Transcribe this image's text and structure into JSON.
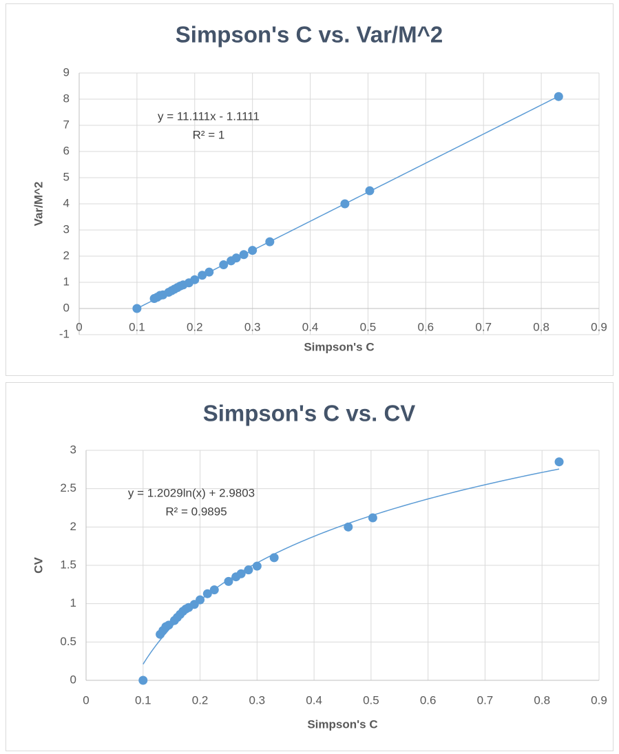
{
  "chart_data": [
    {
      "type": "scatter",
      "title": "Simpson's C vs. Var/M^2",
      "x_label": "Simpson's C",
      "y_label": "Var/M^2",
      "x": [
        0.1,
        0.13,
        0.135,
        0.14,
        0.145,
        0.155,
        0.16,
        0.165,
        0.17,
        0.175,
        0.18,
        0.19,
        0.2,
        0.213,
        0.225,
        0.25,
        0.263,
        0.272,
        0.285,
        0.3,
        0.33,
        0.46,
        0.503,
        0.83
      ],
      "series": [
        {
          "color": "#5b9bd5",
          "values": [
            0,
            0.38,
            0.43,
            0.5,
            0.52,
            0.62,
            0.68,
            0.74,
            0.8,
            0.86,
            0.9,
            0.98,
            1.1,
            1.27,
            1.39,
            1.67,
            1.82,
            1.93,
            2.06,
            2.22,
            2.55,
            4.0,
            4.5,
            8.1
          ]
        }
      ],
      "trendline": {
        "type": "linear",
        "slope": 11.111,
        "intercept": -1.1111,
        "color": "#5b9bd5",
        "equation": "y = 11.111x - 1.1111",
        "r_squared": "R² = 1"
      },
      "xlim": [
        0,
        0.9
      ],
      "xticks": [
        0,
        0.1,
        0.2,
        0.3,
        0.4,
        0.5,
        0.6,
        0.7,
        0.8,
        0.9
      ],
      "ylim": [
        -1,
        9
      ],
      "yticks": [
        -1,
        0,
        1,
        2,
        3,
        4,
        5,
        6,
        7,
        8,
        9
      ],
      "grid": true
    },
    {
      "type": "scatter",
      "title": "Simpson's C vs. CV",
      "x_label": "Simpson's C",
      "y_label": "CV",
      "x": [
        0.1,
        0.13,
        0.135,
        0.14,
        0.145,
        0.155,
        0.16,
        0.165,
        0.17,
        0.175,
        0.18,
        0.19,
        0.2,
        0.213,
        0.225,
        0.25,
        0.263,
        0.272,
        0.285,
        0.3,
        0.33,
        0.46,
        0.503,
        0.83
      ],
      "series": [
        {
          "color": "#5b9bd5",
          "values": [
            0,
            0.6,
            0.65,
            0.7,
            0.72,
            0.78,
            0.82,
            0.86,
            0.9,
            0.93,
            0.95,
            0.99,
            1.05,
            1.13,
            1.18,
            1.29,
            1.35,
            1.39,
            1.44,
            1.49,
            1.6,
            2.0,
            2.12,
            2.85
          ]
        }
      ],
      "trendline": {
        "type": "log",
        "slope": 1.2029,
        "intercept": 2.9803,
        "color": "#5b9bd5",
        "equation": "y = 1.2029ln(x) + 2.9803",
        "r_squared": "R² = 0.9895"
      },
      "xlim": [
        0,
        0.9
      ],
      "xticks": [
        0,
        0.1,
        0.2,
        0.3,
        0.4,
        0.5,
        0.6,
        0.7,
        0.8,
        0.9
      ],
      "ylim": [
        0,
        3
      ],
      "yticks": [
        0,
        0.5,
        1,
        1.5,
        2,
        2.5,
        3
      ],
      "grid": true
    }
  ]
}
